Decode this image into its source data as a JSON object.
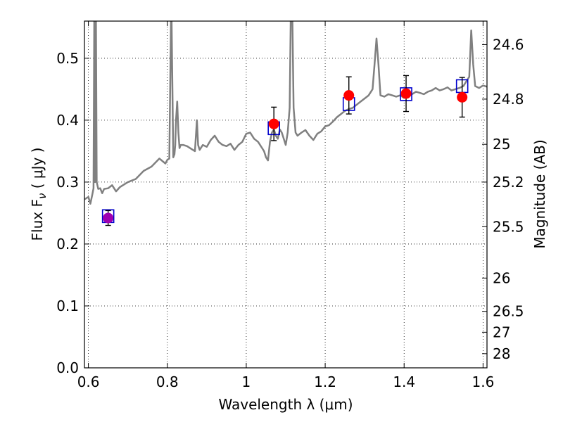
{
  "chart_data": {
    "type": "scatter",
    "title": "",
    "xlabel": "Wavelength  λ (μm)",
    "ylabel": "Flux  F_ν  ( μJy )",
    "ylabel_right": "Magnitude (AB)",
    "xlim": [
      0.59,
      1.61
    ],
    "ylim": [
      0.0,
      0.56
    ],
    "grid": true,
    "grid_style": "dotted",
    "x_ticks": [
      0.6,
      0.8,
      1.0,
      1.2,
      1.4,
      1.6
    ],
    "x_tick_labels": [
      "0.6",
      "0.8",
      "1",
      "1.2",
      "1.4",
      "1.6"
    ],
    "y_ticks": [
      0.0,
      0.1,
      0.2,
      0.3,
      0.4,
      0.5
    ],
    "y_tick_labels": [
      "0.0",
      "0.1",
      "0.2",
      "0.3",
      "0.4",
      "0.5"
    ],
    "right_ticks": [
      {
        "label": "24.6",
        "flux": 0.522
      },
      {
        "label": "24.8",
        "flux": 0.434
      },
      {
        "label": "25",
        "flux": 0.361
      },
      {
        "label": "25.2",
        "flux": 0.3
      },
      {
        "label": "25.5",
        "flux": 0.228
      },
      {
        "label": "26",
        "flux": 0.145
      },
      {
        "label": "26.5",
        "flux": 0.0912
      },
      {
        "label": "27",
        "flux": 0.0575
      },
      {
        "label": "28",
        "flux": 0.0229
      }
    ],
    "colors": {
      "spectrum": "#808080",
      "observed": "#ff0000",
      "model": "#0000cc",
      "errorbar": "#000000",
      "overlap": "#a000b0"
    },
    "series": [
      {
        "kind": "spectrum",
        "x": [
          0.59,
          0.6,
          0.605,
          0.61,
          0.613,
          0.615,
          0.617,
          0.619,
          0.621,
          0.625,
          0.63,
          0.635,
          0.64,
          0.65,
          0.66,
          0.67,
          0.68,
          0.7,
          0.72,
          0.74,
          0.76,
          0.78,
          0.795,
          0.8,
          0.805,
          0.81,
          0.815,
          0.818,
          0.82,
          0.822,
          0.825,
          0.828,
          0.831,
          0.834,
          0.84,
          0.85,
          0.86,
          0.87,
          0.875,
          0.878,
          0.882,
          0.89,
          0.9,
          0.91,
          0.92,
          0.93,
          0.94,
          0.95,
          0.96,
          0.97,
          0.98,
          0.99,
          1.0,
          1.01,
          1.02,
          1.03,
          1.04,
          1.045,
          1.05,
          1.055,
          1.06,
          1.065,
          1.07,
          1.075,
          1.08,
          1.085,
          1.09,
          1.095,
          1.1,
          1.105,
          1.11,
          1.113,
          1.117,
          1.12,
          1.125,
          1.13,
          1.14,
          1.15,
          1.16,
          1.17,
          1.18,
          1.19,
          1.2,
          1.21,
          1.22,
          1.23,
          1.24,
          1.25,
          1.26,
          1.27,
          1.28,
          1.29,
          1.3,
          1.31,
          1.32,
          1.325,
          1.33,
          1.335,
          1.34,
          1.35,
          1.36,
          1.37,
          1.38,
          1.39,
          1.4,
          1.41,
          1.42,
          1.43,
          1.44,
          1.45,
          1.46,
          1.47,
          1.48,
          1.49,
          1.5,
          1.51,
          1.52,
          1.53,
          1.54,
          1.55,
          1.56,
          1.565,
          1.57,
          1.575,
          1.58,
          1.59,
          1.6,
          1.61
        ],
        "y": [
          0.272,
          0.276,
          0.265,
          0.28,
          0.29,
          0.58,
          0.3,
          0.58,
          0.3,
          0.289,
          0.29,
          0.282,
          0.289,
          0.29,
          0.295,
          0.285,
          0.292,
          0.3,
          0.305,
          0.318,
          0.325,
          0.338,
          0.33,
          0.336,
          0.338,
          0.6,
          0.34,
          0.345,
          0.36,
          0.4,
          0.43,
          0.38,
          0.355,
          0.36,
          0.36,
          0.358,
          0.354,
          0.35,
          0.4,
          0.36,
          0.352,
          0.36,
          0.357,
          0.368,
          0.375,
          0.365,
          0.36,
          0.358,
          0.362,
          0.352,
          0.36,
          0.365,
          0.378,
          0.38,
          0.37,
          0.365,
          0.355,
          0.35,
          0.34,
          0.335,
          0.365,
          0.38,
          0.385,
          0.375,
          0.37,
          0.385,
          0.38,
          0.37,
          0.36,
          0.38,
          0.42,
          0.58,
          0.56,
          0.42,
          0.38,
          0.375,
          0.38,
          0.384,
          0.375,
          0.368,
          0.378,
          0.382,
          0.39,
          0.392,
          0.398,
          0.405,
          0.41,
          0.415,
          0.418,
          0.42,
          0.425,
          0.43,
          0.435,
          0.44,
          0.45,
          0.49,
          0.532,
          0.49,
          0.44,
          0.438,
          0.442,
          0.44,
          0.438,
          0.44,
          0.436,
          0.438,
          0.442,
          0.446,
          0.444,
          0.442,
          0.446,
          0.448,
          0.452,
          0.448,
          0.45,
          0.453,
          0.448,
          0.45,
          0.452,
          0.455,
          0.465,
          0.47,
          0.545,
          0.49,
          0.455,
          0.452,
          0.456,
          0.454
        ]
      },
      {
        "kind": "model",
        "name": "",
        "x": [
          0.65,
          1.07,
          1.26,
          1.405,
          1.547
        ],
        "y": [
          0.245,
          0.387,
          0.426,
          0.442,
          0.455
        ]
      },
      {
        "kind": "observed",
        "name": "",
        "x": [
          0.65,
          1.07,
          1.26,
          1.405,
          1.547
        ],
        "y": [
          0.242,
          0.394,
          0.44,
          0.443,
          0.437
        ],
        "err": [
          0.012,
          0.027,
          0.03,
          0.029,
          0.032
        ]
      }
    ]
  }
}
